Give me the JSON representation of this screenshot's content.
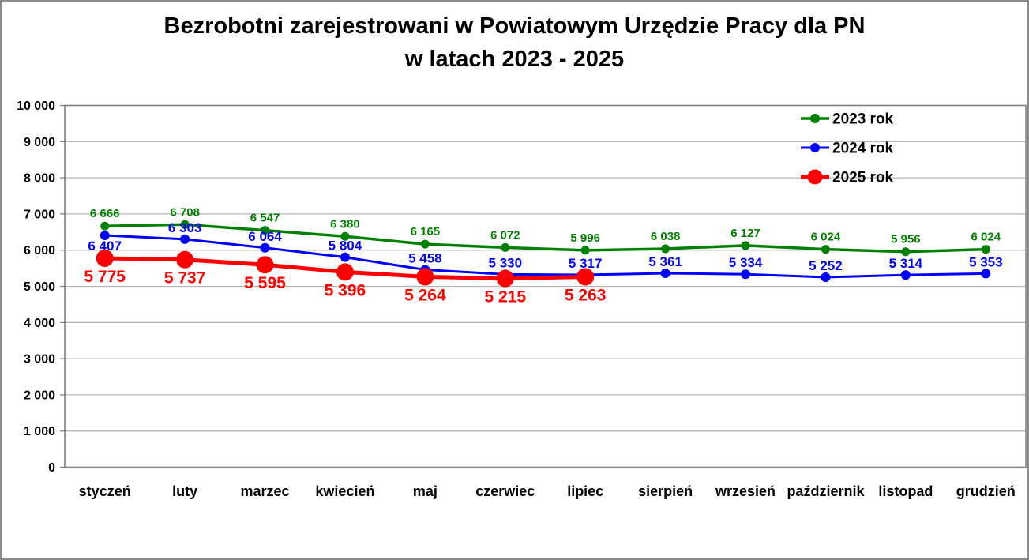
{
  "page": {
    "title_line1": "Bezrobotni zarejestrowani w Powiatowym Urzędzie Pracy dla PN",
    "title_line2": "w latach 2023 - 2025"
  },
  "chart_data": {
    "type": "line",
    "title": "Bezrobotni zarejestrowani w Powiatowym Urzędzie Pracy dla PN w latach 2023 - 2025",
    "categories": [
      "styczeń",
      "luty",
      "marzec",
      "kwiecień",
      "maj",
      "czerwiec",
      "lipiec",
      "sierpień",
      "wrzesień",
      "październik",
      "listopad",
      "grudzień"
    ],
    "series": [
      {
        "name": "2023 rok",
        "color": "#008000",
        "values": [
          6666,
          6708,
          6547,
          6380,
          6165,
          6072,
          5996,
          6038,
          6127,
          6024,
          5956,
          6024
        ],
        "labels": [
          "6 666",
          "6 708",
          "6 547",
          "6 380",
          "6 165",
          "6 072",
          "5 996",
          "6 038",
          "6 127",
          "6 024",
          "5 956",
          "6 024"
        ],
        "line_width": 3.5,
        "marker_radius": 5.5,
        "legend_marker_radius": 6,
        "label_font_size": 15,
        "label_position": "above",
        "label_dy": -11
      },
      {
        "name": "2024 rok",
        "color": "#0000ff",
        "values": [
          6407,
          6303,
          6064,
          5804,
          5458,
          5330,
          5317,
          5361,
          5334,
          5252,
          5314,
          5353
        ],
        "labels": [
          "6 407",
          "6 303",
          "6 064",
          "5 804",
          "5 458",
          "5 330",
          "5 317",
          "5 361",
          "5 334",
          "5 252",
          "5 314",
          "5 353"
        ],
        "line_width": 3,
        "marker_radius": 6,
        "legend_marker_radius": 6,
        "label_font_size": 17,
        "label_position": "above",
        "label_dy": -9,
        "first_label_below": true,
        "first_label_dy": 19
      },
      {
        "name": "2025 rok",
        "color": "#ff0000",
        "values": [
          5775,
          5737,
          5595,
          5396,
          5264,
          5215,
          5263,
          null,
          null,
          null,
          null,
          null
        ],
        "labels": [
          "5 775",
          "5 737",
          "5 595",
          "5 396",
          "5 264",
          "5 215",
          "5 263",
          null,
          null,
          null,
          null,
          null
        ],
        "line_width": 5,
        "marker_radius": 11,
        "legend_marker_radius": 9.5,
        "label_font_size": 21,
        "label_position": "below",
        "label_dy": 30
      }
    ],
    "ylim": [
      0,
      10000
    ],
    "y_tick_step": 1000,
    "y_tick_labels": [
      "0",
      "1 000",
      "2 000",
      "3 000",
      "4 000",
      "5 000",
      "6 000",
      "7 000",
      "8 000",
      "9 000",
      "10 000"
    ],
    "xlabel": "",
    "ylabel": "",
    "grid": true,
    "legend_position": "top-right",
    "legend_labels": [
      "2023 rok",
      "2024 rok",
      "2025 rok"
    ]
  },
  "style_colors": {
    "grid": "#b5b5b5",
    "plot_border": "#808080",
    "page_border": "#8c8c8c",
    "text": "#000000"
  }
}
